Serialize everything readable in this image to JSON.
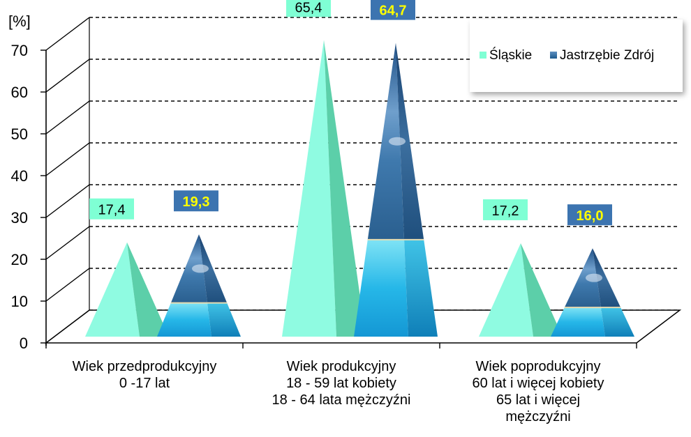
{
  "chart_data": {
    "type": "bar",
    "ylabel": "[%]",
    "ylim": [
      0,
      70
    ],
    "yticks": [
      "0",
      "10",
      "20",
      "30",
      "40",
      "50",
      "60",
      "70"
    ],
    "grid": true,
    "legend_position": "top-right",
    "categories": [
      [
        "Wiek przedprodukcyjny",
        "0 -17 lat"
      ],
      [
        "Wiek produkcyjny",
        "18 - 59 lat kobiety",
        "18 - 64 lata mężczyźni"
      ],
      [
        "Wiek poprodukcyjny",
        "60 lat i więcej kobiety",
        "65 lat i więcej",
        "mężczyźni"
      ]
    ],
    "series": [
      {
        "name": "Śląskie",
        "values": [
          17.4,
          65.4,
          17.2
        ],
        "labels": [
          "17,4",
          "65,4",
          "17,2"
        ],
        "color": "#7fffd4"
      },
      {
        "name": "Jastrzębie  Zdrój",
        "values": [
          19.3,
          64.7,
          16.0
        ],
        "labels": [
          "19,3",
          "64,7",
          "16,0"
        ],
        "color": "#2f6fa8"
      }
    ]
  }
}
